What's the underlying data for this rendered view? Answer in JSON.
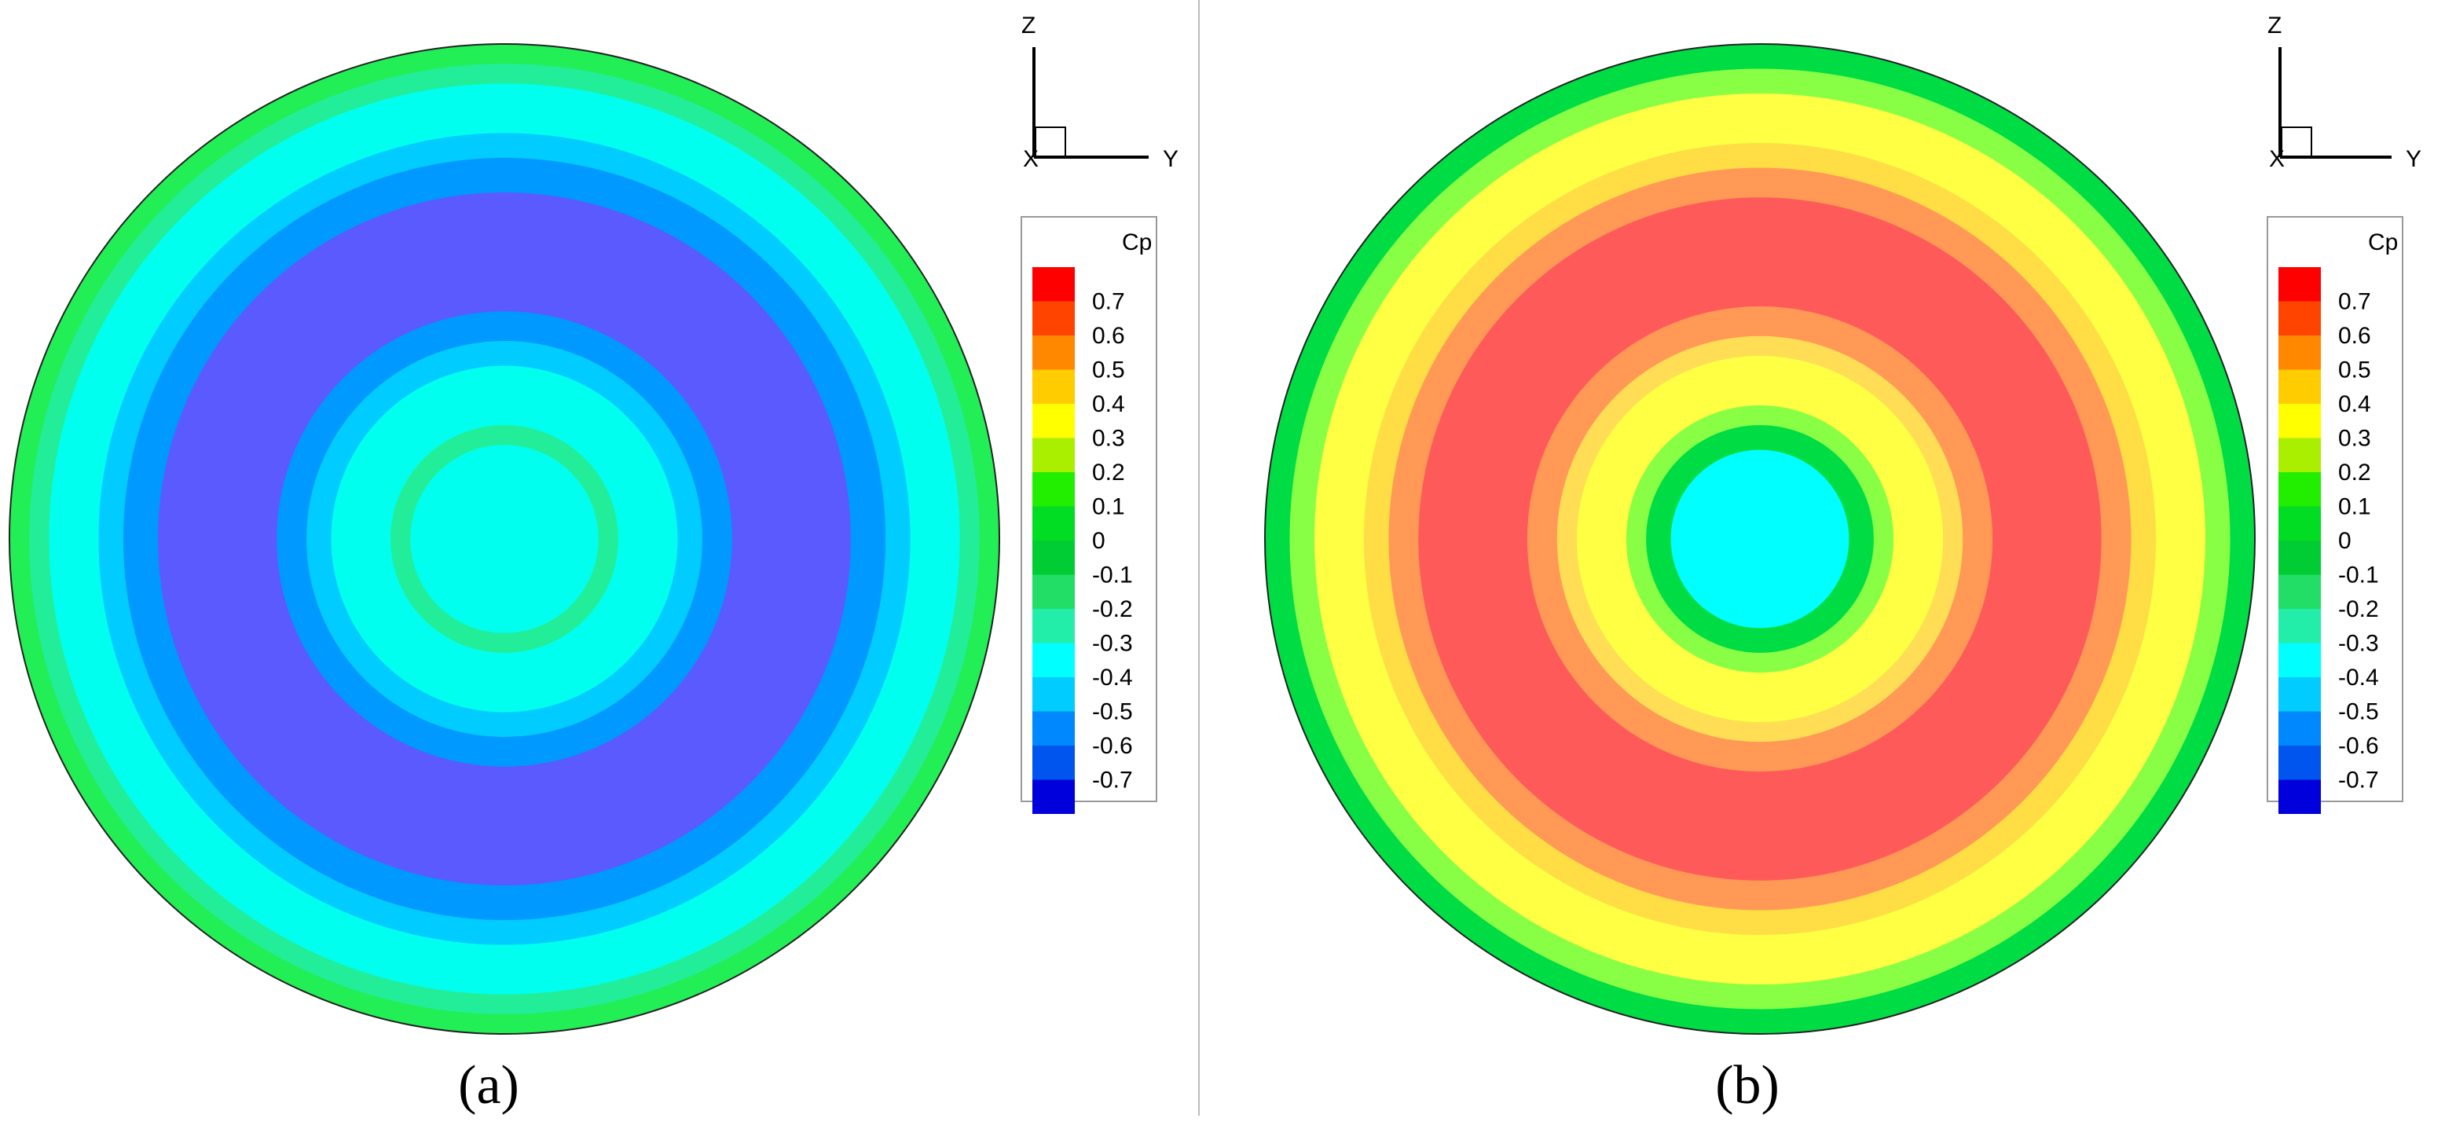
{
  "legend": {
    "title": "Cp",
    "labels": [
      "0.7",
      "0.6",
      "0.5",
      "0.4",
      "0.3",
      "0.2",
      "0.1",
      "0",
      "-0.1",
      "-0.2",
      "-0.3",
      "-0.4",
      "-0.5",
      "-0.6",
      "-0.7"
    ],
    "swatch_colors": [
      "#ff0000",
      "#ff4400",
      "#ff8800",
      "#ffcc00",
      "#ffff00",
      "#aaee00",
      "#22ee00",
      "#00dd22",
      "#00cc33",
      "#22dd66",
      "#22eeaa",
      "#00ffff",
      "#00ccff",
      "#0088ff",
      "#0055ee",
      "#0000dd"
    ]
  },
  "axes": {
    "z_label": "Z",
    "y_label": "Y"
  },
  "divider_color": "#bbbbbb",
  "panels": [
    {
      "caption": "(a)",
      "rings": [
        {
          "outer_fraction": 1.0,
          "color": "#22ee55"
        },
        {
          "outer_fraction": 0.96,
          "color": "#22ee99"
        },
        {
          "outer_fraction": 0.92,
          "color": "#00ffee"
        },
        {
          "outer_fraction": 0.82,
          "color": "#00ccff"
        },
        {
          "outer_fraction": 0.77,
          "color": "#0099ff"
        },
        {
          "outer_fraction": 0.7,
          "color": "#5a5aff"
        },
        {
          "outer_fraction": 0.46,
          "color": "#0099ff"
        },
        {
          "outer_fraction": 0.4,
          "color": "#00ccff"
        },
        {
          "outer_fraction": 0.35,
          "color": "#00ffee"
        },
        {
          "outer_fraction": 0.23,
          "color": "#22ee99"
        },
        {
          "outer_fraction": 0.19,
          "color": "#00ffee"
        }
      ]
    },
    {
      "caption": "(b)",
      "rings": [
        {
          "outer_fraction": 1.0,
          "color": "#00dd44"
        },
        {
          "outer_fraction": 0.95,
          "color": "#88ff44"
        },
        {
          "outer_fraction": 0.9,
          "color": "#ffff44"
        },
        {
          "outer_fraction": 0.8,
          "color": "#ffdd44"
        },
        {
          "outer_fraction": 0.75,
          "color": "#ff9955"
        },
        {
          "outer_fraction": 0.69,
          "color": "#ff5a5a"
        },
        {
          "outer_fraction": 0.47,
          "color": "#ff9955"
        },
        {
          "outer_fraction": 0.41,
          "color": "#ffdd55"
        },
        {
          "outer_fraction": 0.37,
          "color": "#ffff44"
        },
        {
          "outer_fraction": 0.27,
          "color": "#88ff44"
        },
        {
          "outer_fraction": 0.23,
          "color": "#00dd44"
        },
        {
          "outer_fraction": 0.18,
          "color": "#00ffff"
        }
      ]
    }
  ]
}
